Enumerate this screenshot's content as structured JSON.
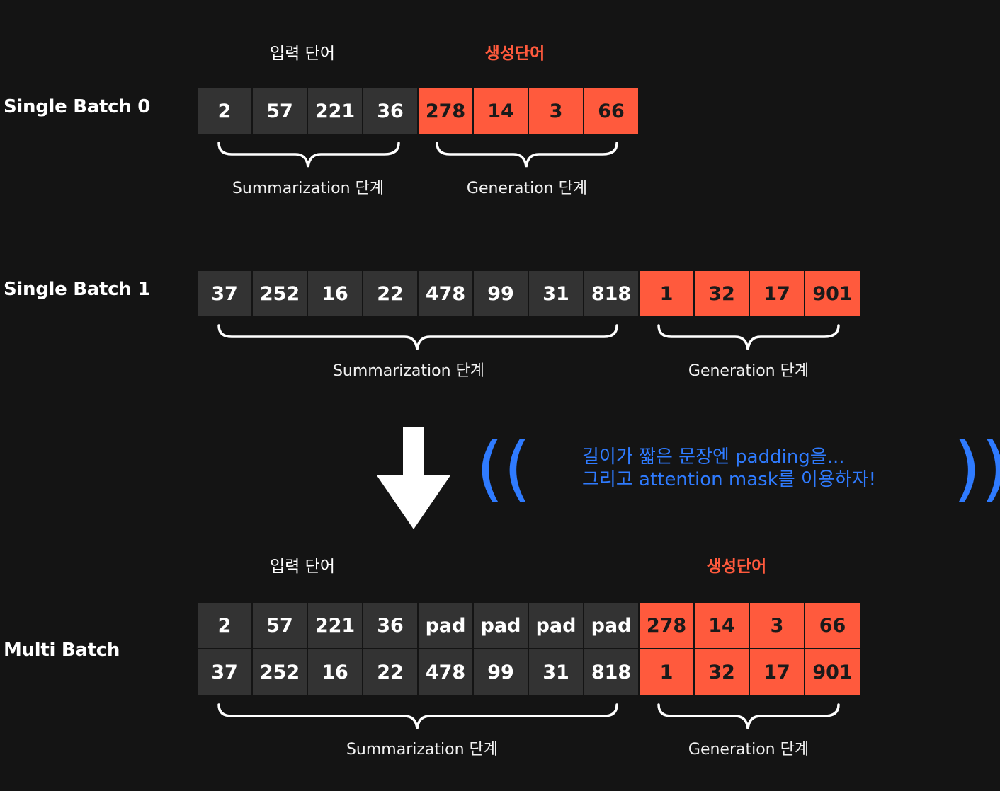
{
  "single0": {
    "label": "Single Batch 0",
    "input_header": "입력 단어",
    "gen_header": "생성단어",
    "input_tokens": [
      "2",
      "57",
      "221",
      "36"
    ],
    "gen_tokens": [
      "278",
      "14",
      "3",
      "66"
    ],
    "summ_label": "Summarization 단계",
    "gen_label": "Generation 단계"
  },
  "single1": {
    "label": "Single Batch 1",
    "input_tokens": [
      "37",
      "252",
      "16",
      "22",
      "478",
      "99",
      "31",
      "818"
    ],
    "gen_tokens": [
      "1",
      "32",
      "17",
      "901"
    ],
    "summ_label": "Summarization 단계",
    "gen_label": "Generation 단계"
  },
  "note": {
    "line1": "길이가 짧은 문장엔 padding을...",
    "line2": "그리고 attention mask를 이용하자!",
    "open_paren": "((",
    "close_paren": "))"
  },
  "multi": {
    "label": "Multi Batch",
    "input_header": "입력 단어",
    "gen_header": "생성단어",
    "row1_input": [
      "2",
      "57",
      "221",
      "36",
      "pad",
      "pad",
      "pad",
      "pad"
    ],
    "row1_gen": [
      "278",
      "14",
      "3",
      "66"
    ],
    "row2_input": [
      "37",
      "252",
      "16",
      "22",
      "478",
      "99",
      "31",
      "818"
    ],
    "row2_gen": [
      "1",
      "32",
      "17",
      "901"
    ],
    "summ_label": "Summarization 단계",
    "gen_label": "Generation 단계"
  },
  "colors": {
    "input_cell": "#333333",
    "gen_cell": "#ff5a3d",
    "note": "#2f7bff",
    "background": "#141414"
  }
}
